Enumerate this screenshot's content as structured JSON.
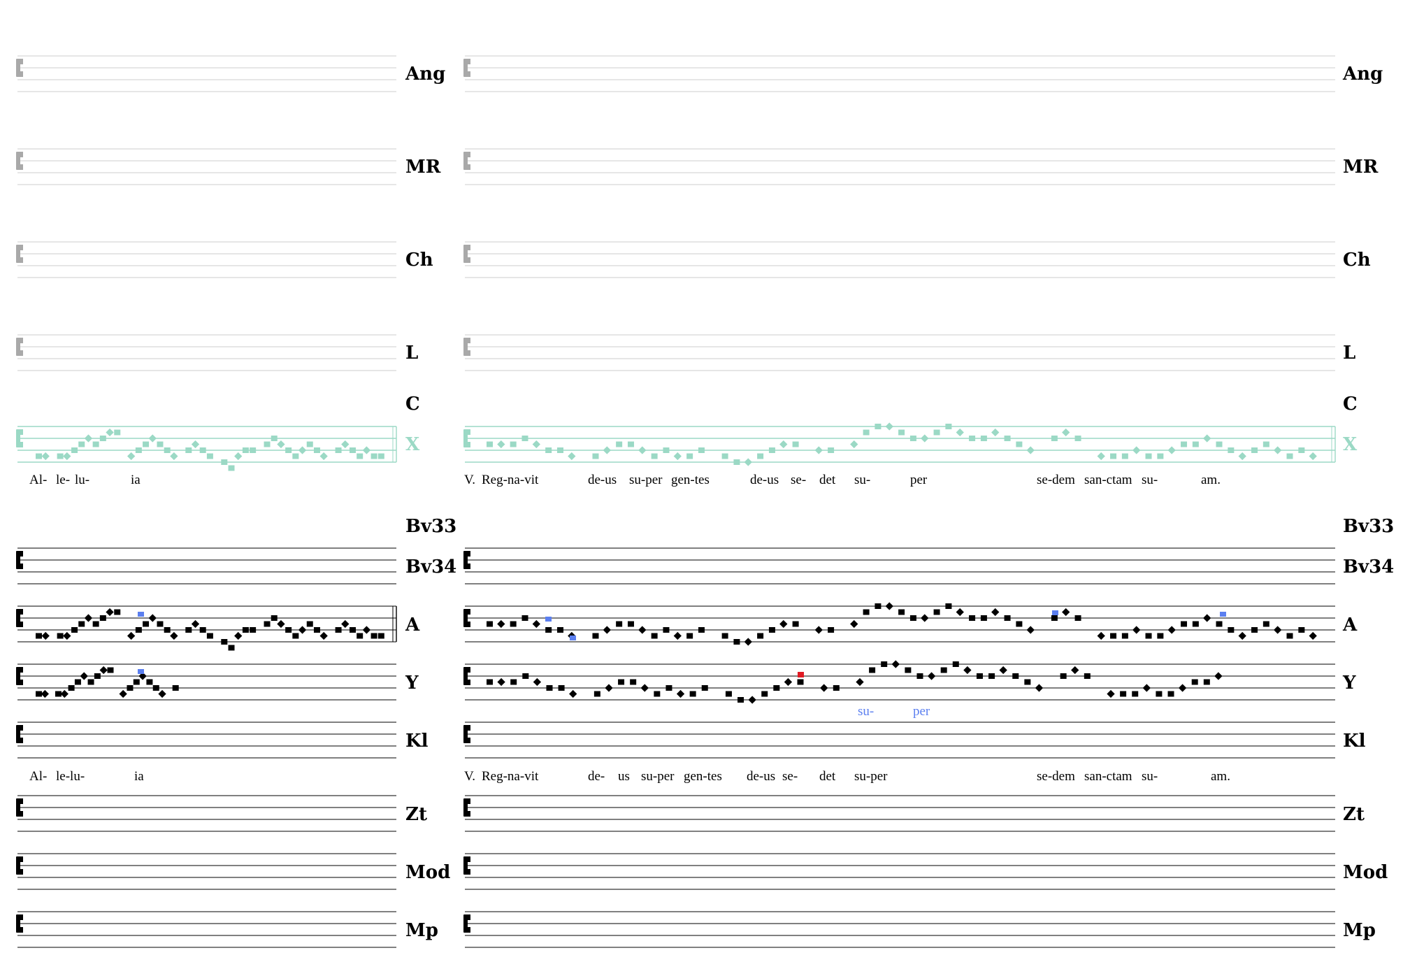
{
  "colors": {
    "ink": "#000000",
    "faint_staff": "#d8d8d8",
    "faint_clef": "#a9a9a9",
    "reference": "#9bd9c5",
    "variant": "#5b7ff0",
    "error": "#e01b24"
  },
  "sources": {
    "top": [
      {
        "siglum": "Ang",
        "state": "empty"
      },
      {
        "siglum": "MR",
        "state": "empty"
      },
      {
        "siglum": "Ch",
        "state": "empty"
      },
      {
        "siglum": "L",
        "state": "empty"
      }
    ],
    "c_label": "C",
    "reference_siglum": "X",
    "bv33": "Bv33",
    "main": [
      {
        "siglum": "Bv34",
        "state": "blank"
      },
      {
        "siglum": "A",
        "state": "notated"
      },
      {
        "siglum": "Y",
        "state": "notated"
      },
      {
        "siglum": "Kl",
        "state": "blank"
      }
    ],
    "bottom": [
      {
        "siglum": "Zt",
        "state": "blank"
      },
      {
        "siglum": "Mod",
        "state": "blank"
      },
      {
        "siglum": "Mp",
        "state": "blank"
      }
    ]
  },
  "lyrics": {
    "reference": {
      "left": [
        "Al-",
        "le-",
        "lu-",
        "ia"
      ],
      "right": [
        "V.",
        "Reg-na-vit",
        "de-us",
        "su-per",
        "gen-tes",
        "de-us",
        "se-",
        "det",
        "su-",
        "per",
        "se-dem",
        "san-ctam",
        "su-",
        "am."
      ]
    },
    "y_variant": [
      "su-",
      "per"
    ],
    "main": {
      "left": [
        "Al-",
        "le-lu-",
        "ia"
      ],
      "right": [
        "V.",
        "Reg-na-vit",
        "de-",
        "us",
        "su-per",
        "gen-tes",
        "de-us",
        "se-",
        "det",
        "su-per",
        "se-dem",
        "san-ctam",
        "su-",
        "am."
      ]
    }
  }
}
